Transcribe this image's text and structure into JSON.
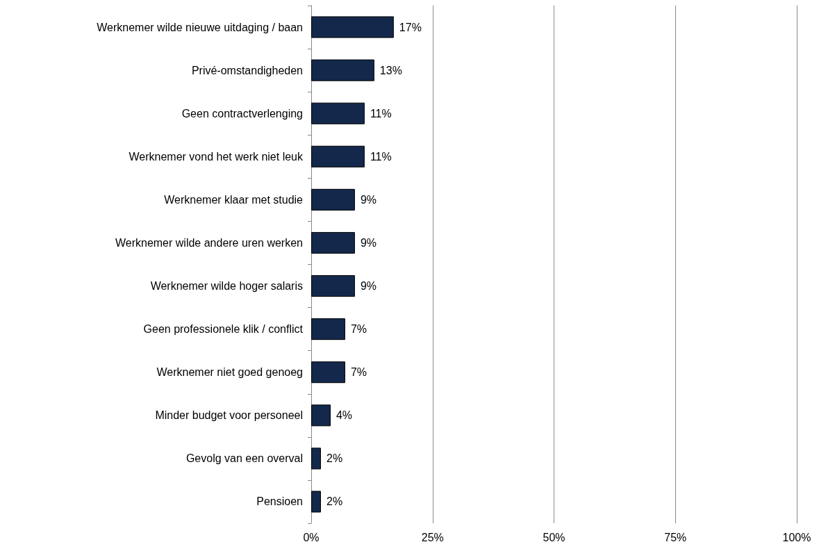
{
  "chart_data": {
    "type": "bar",
    "orientation": "horizontal",
    "categories": [
      "Werknemer wilde nieuwe uitdaging / baan",
      "Privé-omstandigheden",
      "Geen contractverlenging",
      "Werknemer vond het werk niet leuk",
      "Werknemer klaar met studie",
      "Werknemer wilde andere uren werken",
      "Werknemer wilde hoger salaris",
      "Geen professionele klik / conflict",
      "Werknemer niet goed genoeg",
      "Minder budget voor personeel",
      "Gevolg van een overval",
      "Pensioen"
    ],
    "values": [
      17,
      13,
      11,
      11,
      9,
      9,
      9,
      7,
      7,
      4,
      2,
      2
    ],
    "value_labels": [
      "17%",
      "13%",
      "11%",
      "11%",
      "9%",
      "9%",
      "9%",
      "7%",
      "7%",
      "4%",
      "2%",
      "2%"
    ],
    "color": "#14284b",
    "xlim": [
      0,
      100
    ],
    "xticks": [
      {
        "value": 0,
        "label": "0%"
      },
      {
        "value": 25,
        "label": "25%"
      },
      {
        "value": 50,
        "label": "50%"
      },
      {
        "value": 75,
        "label": "75%"
      },
      {
        "value": 100,
        "label": "100%"
      }
    ],
    "grid": "x"
  }
}
